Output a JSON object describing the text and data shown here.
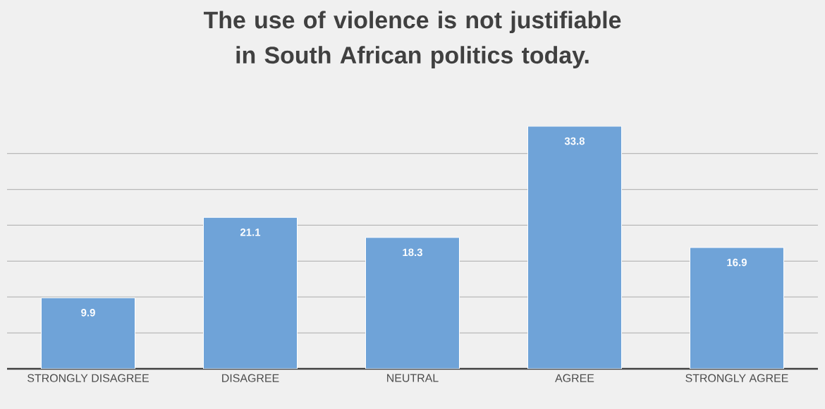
{
  "chart_data": {
    "type": "bar",
    "title": "The use of violence is not justifiable in South African politics today.",
    "categories": [
      "STRONGLY DISAGREE",
      "DISAGREE",
      "NEUTRAL",
      "AGREE",
      "STRONGLY AGREE"
    ],
    "values": [
      9.9,
      21.1,
      18.3,
      33.8,
      16.9
    ],
    "color": "#6fa3d8",
    "grid": "y",
    "data_labels": true,
    "tick_labels": "x"
  }
}
